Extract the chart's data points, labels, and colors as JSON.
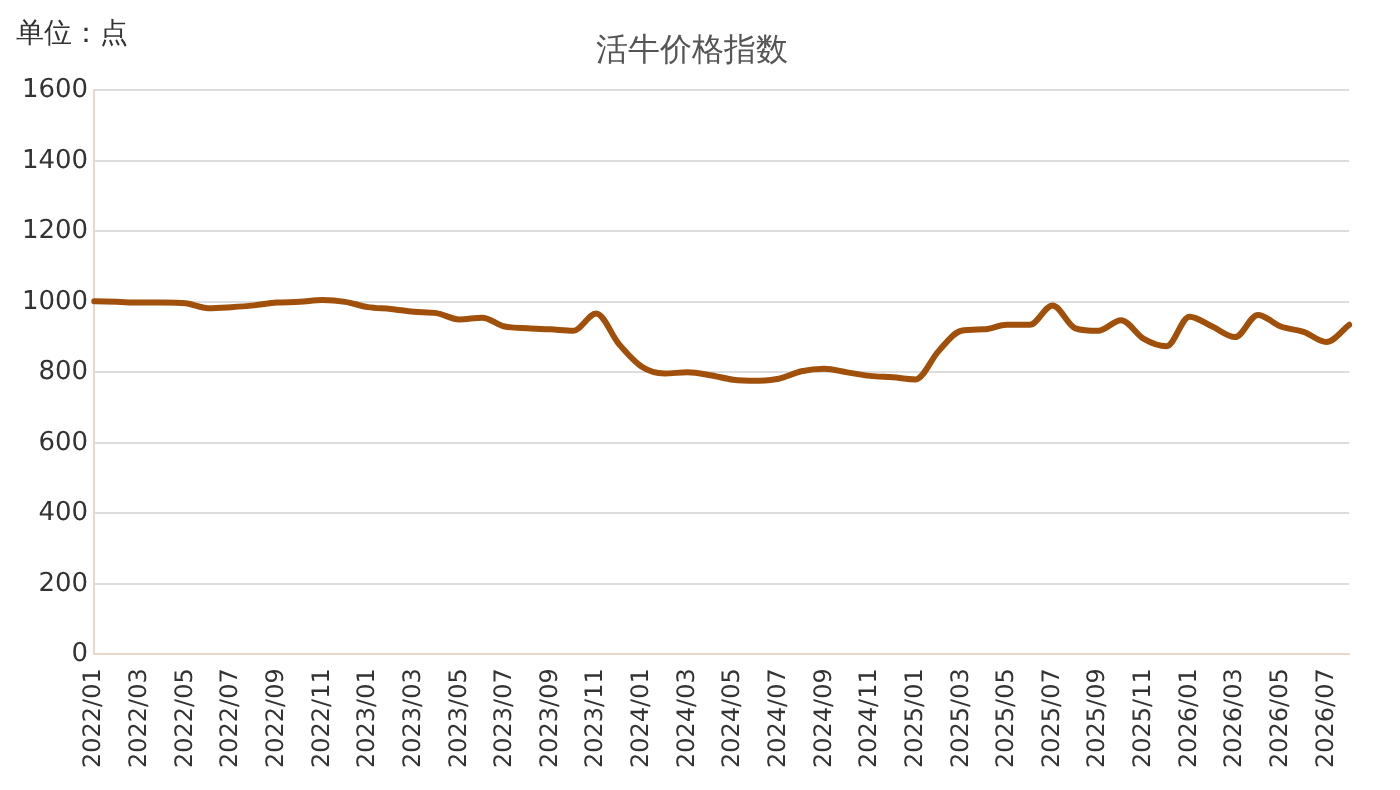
{
  "chart_data": {
    "type": "line",
    "title": "活牛价格指数",
    "ylabel": "单位：点",
    "categories": [
      "2022/01",
      null,
      "2022/03",
      null,
      "2022/05",
      null,
      "2022/07",
      null,
      "2022/09",
      null,
      "2022/11",
      null,
      "2023/01",
      null,
      "2023/03",
      null,
      "2023/05",
      null,
      "2023/07",
      null,
      "2023/09",
      null,
      "2023/11",
      null,
      "2024/01",
      null,
      "2024/03",
      null,
      "2024/05",
      null,
      "2024/07",
      null,
      "2024/09",
      null,
      "2024/11",
      null,
      "2025/01",
      null,
      "2025/03",
      null,
      "2025/05",
      null,
      "2025/07",
      null,
      "2025/09",
      null,
      "2025/11",
      null,
      "2026/01",
      null,
      "2026/03",
      null,
      "2026/05",
      null,
      "2026/07",
      null
    ],
    "series": [
      {
        "color": "#a0500a",
        "values": [
          1002,
          1000,
          998,
          998,
          996,
          982,
          985,
          990,
          998,
          1000,
          1005,
          1000,
          985,
          980,
          972,
          968,
          950,
          955,
          930,
          925,
          922,
          918,
          967,
          880,
          816,
          797,
          800,
          792,
          779,
          776,
          782,
          803,
          810,
          800,
          790,
          786,
          780,
          860,
          918,
          922,
          935,
          935,
          990,
          925,
          918,
          948,
          895,
          874,
          958,
          930,
          900,
          963,
          930,
          915,
          886,
          935
        ]
      }
    ],
    "ylim": [
      0,
      1600
    ],
    "yticks": [
      0,
      200,
      400,
      600,
      800,
      1000,
      1200,
      1400,
      1600
    ],
    "grid": "y",
    "legend": false,
    "marker": "none",
    "line_style": "solid"
  }
}
